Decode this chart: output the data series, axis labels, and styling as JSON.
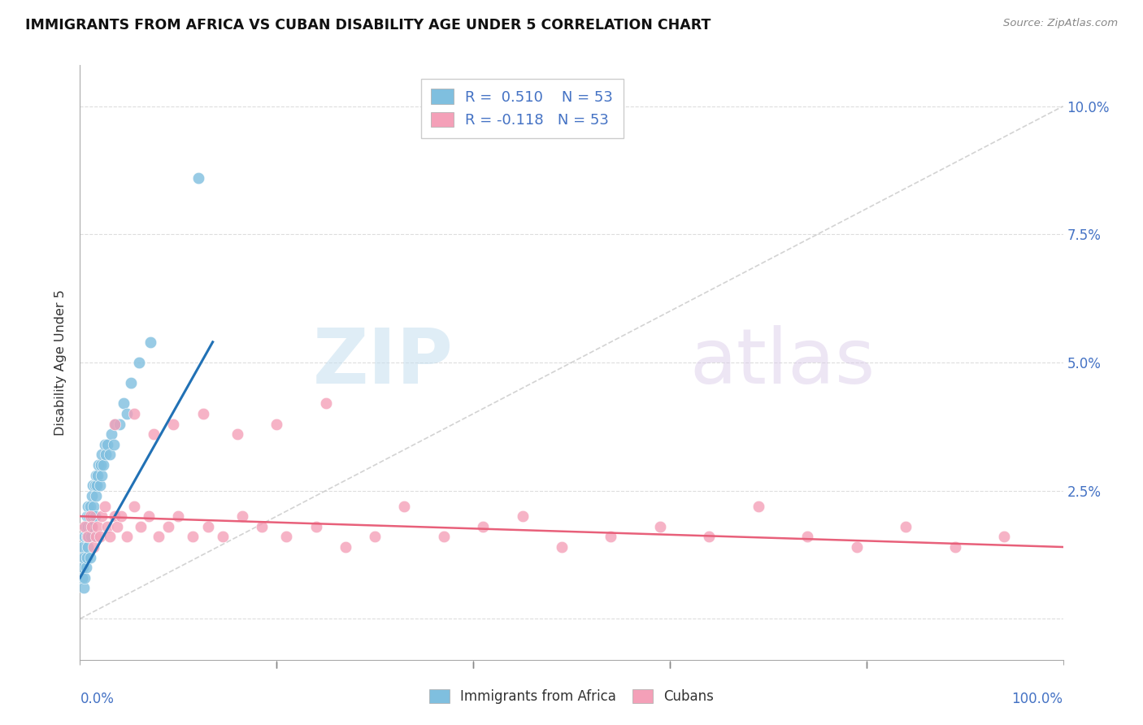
{
  "title": "IMMIGRANTS FROM AFRICA VS CUBAN DISABILITY AGE UNDER 5 CORRELATION CHART",
  "source": "Source: ZipAtlas.com",
  "ylabel": "Disability Age Under 5",
  "yticks": [
    0.0,
    0.025,
    0.05,
    0.075,
    0.1
  ],
  "ytick_labels": [
    "",
    "2.5%",
    "5.0%",
    "7.5%",
    "10.0%"
  ],
  "xmin": 0.0,
  "xmax": 1.0,
  "ymin": -0.008,
  "ymax": 0.108,
  "legend_blue_r": "R =  0.510",
  "legend_blue_n": "N = 53",
  "legend_pink_r": "R = -0.118",
  "legend_pink_n": "N = 53",
  "blue_color": "#7fbfdf",
  "pink_color": "#f4a0b8",
  "blue_line_color": "#2171b5",
  "pink_line_color": "#e8607a",
  "watermark_zip": "ZIP",
  "watermark_atlas": "atlas",
  "africa_x": [
    0.002,
    0.003,
    0.003,
    0.004,
    0.004,
    0.005,
    0.005,
    0.006,
    0.006,
    0.007,
    0.007,
    0.007,
    0.008,
    0.008,
    0.008,
    0.009,
    0.009,
    0.01,
    0.01,
    0.01,
    0.011,
    0.011,
    0.012,
    0.012,
    0.013,
    0.013,
    0.014,
    0.015,
    0.015,
    0.016,
    0.016,
    0.017,
    0.018,
    0.019,
    0.02,
    0.021,
    0.022,
    0.022,
    0.024,
    0.025,
    0.026,
    0.028,
    0.03,
    0.032,
    0.034,
    0.036,
    0.04,
    0.044,
    0.048,
    0.052,
    0.06,
    0.072,
    0.12
  ],
  "africa_y": [
    0.008,
    0.01,
    0.014,
    0.006,
    0.012,
    0.008,
    0.016,
    0.01,
    0.018,
    0.012,
    0.016,
    0.02,
    0.014,
    0.018,
    0.022,
    0.016,
    0.02,
    0.012,
    0.018,
    0.022,
    0.016,
    0.02,
    0.018,
    0.024,
    0.02,
    0.026,
    0.022,
    0.02,
    0.026,
    0.024,
    0.028,
    0.026,
    0.028,
    0.03,
    0.026,
    0.03,
    0.028,
    0.032,
    0.03,
    0.034,
    0.032,
    0.034,
    0.032,
    0.036,
    0.034,
    0.038,
    0.038,
    0.042,
    0.04,
    0.046,
    0.05,
    0.054,
    0.086
  ],
  "cubans_x": [
    0.005,
    0.008,
    0.01,
    0.012,
    0.014,
    0.016,
    0.018,
    0.02,
    0.022,
    0.025,
    0.028,
    0.03,
    0.035,
    0.038,
    0.042,
    0.048,
    0.055,
    0.062,
    0.07,
    0.08,
    0.09,
    0.1,
    0.115,
    0.13,
    0.145,
    0.165,
    0.185,
    0.21,
    0.24,
    0.27,
    0.3,
    0.33,
    0.37,
    0.41,
    0.45,
    0.49,
    0.54,
    0.59,
    0.64,
    0.69,
    0.74,
    0.79,
    0.84,
    0.89,
    0.94,
    0.035,
    0.055,
    0.075,
    0.095,
    0.125,
    0.16,
    0.2,
    0.25
  ],
  "cubans_y": [
    0.018,
    0.016,
    0.02,
    0.018,
    0.014,
    0.016,
    0.018,
    0.016,
    0.02,
    0.022,
    0.018,
    0.016,
    0.02,
    0.018,
    0.02,
    0.016,
    0.022,
    0.018,
    0.02,
    0.016,
    0.018,
    0.02,
    0.016,
    0.018,
    0.016,
    0.02,
    0.018,
    0.016,
    0.018,
    0.014,
    0.016,
    0.022,
    0.016,
    0.018,
    0.02,
    0.014,
    0.016,
    0.018,
    0.016,
    0.022,
    0.016,
    0.014,
    0.018,
    0.014,
    0.016,
    0.038,
    0.04,
    0.036,
    0.038,
    0.04,
    0.036,
    0.038,
    0.042
  ],
  "blue_trend_x": [
    0.0,
    0.135
  ],
  "blue_trend_y": [
    0.008,
    0.054
  ],
  "pink_trend_x": [
    0.0,
    1.0
  ],
  "pink_trend_y": [
    0.02,
    0.014
  ],
  "diag_line_x": [
    0.0,
    1.0
  ],
  "diag_line_y": [
    0.0,
    0.1
  ]
}
